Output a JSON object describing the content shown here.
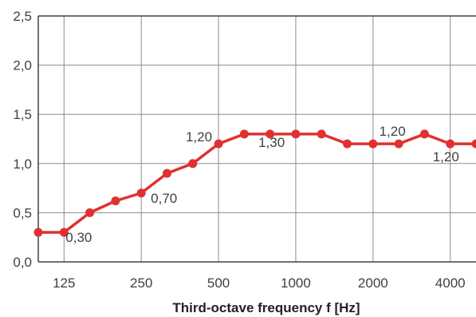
{
  "chart_data": {
    "type": "line",
    "title": "",
    "xlabel": "Third-octave frequency f [Hz]",
    "ylabel": "",
    "ylim": [
      0,
      2.5
    ],
    "yticks": [
      0,
      0.5,
      1.0,
      1.5,
      2.0,
      2.5
    ],
    "ytick_labels": [
      "0,0",
      "0,5",
      "1,0",
      "1,5",
      "2,0",
      "2,5"
    ],
    "xticks_labeled": [
      "125",
      "250",
      "500",
      "1000",
      "2000",
      "4000"
    ],
    "x": [
      100,
      125,
      160,
      200,
      250,
      315,
      400,
      500,
      630,
      800,
      1000,
      1250,
      1600,
      2000,
      2500,
      3150,
      4000,
      5000
    ],
    "series": [
      {
        "name": "",
        "values": [
          0.3,
          0.3,
          0.5,
          0.62,
          0.7,
          0.9,
          1.0,
          1.2,
          1.3,
          1.3,
          1.3,
          1.3,
          1.2,
          1.2,
          1.2,
          1.3,
          1.2,
          1.2
        ],
        "color": "#e03030"
      }
    ],
    "data_labels": [
      {
        "index": 1,
        "text": "0,30"
      },
      {
        "index": 4,
        "text": "0,70"
      },
      {
        "index": 7,
        "text": "1,20"
      },
      {
        "index": 9,
        "text": "1,30"
      },
      {
        "index": 14,
        "text": "1,20"
      },
      {
        "index": 16,
        "text": "1,20"
      }
    ],
    "grid": true,
    "legend": "none"
  }
}
